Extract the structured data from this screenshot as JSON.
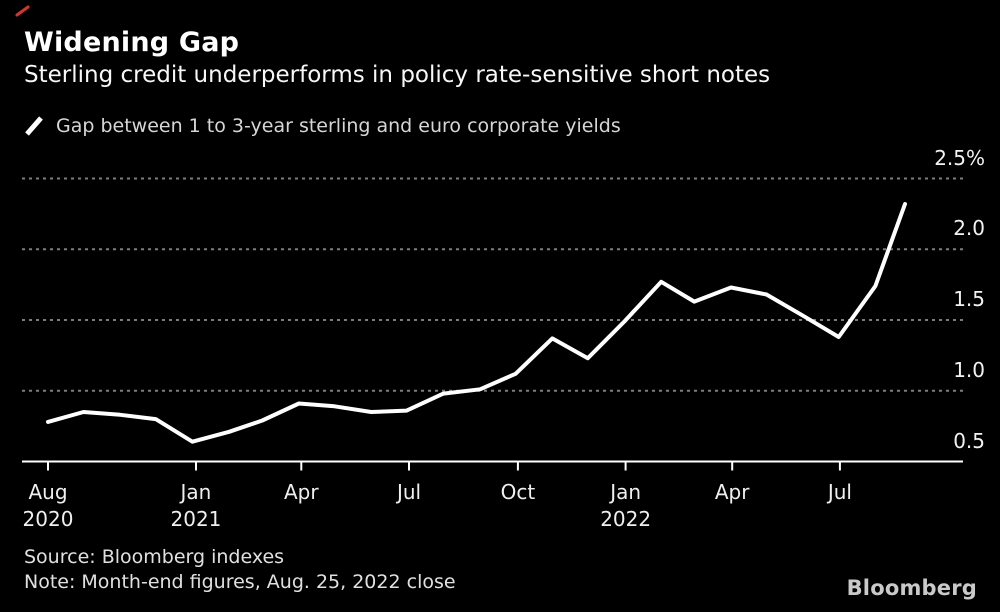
{
  "chart_data": {
    "type": "line",
    "title": "Widening Gap",
    "subtitle": "Sterling credit underperforms in policy rate-sensitive short notes",
    "legend": "Gap between 1 to 3-year sterling and euro corporate yields",
    "unit": "%",
    "x": [
      "Aug 2020",
      "Sep 2020",
      "Oct 2020",
      "Nov 2020",
      "Dec 2020",
      "Jan 2021",
      "Feb 2021",
      "Mar 2021",
      "Apr 2021",
      "May 2021",
      "Jun 2021",
      "Jul 2021",
      "Aug 2021",
      "Sep 2021",
      "Oct 2021",
      "Nov 2021",
      "Dec 2021",
      "Jan 2022",
      "Feb 2022",
      "Mar 2022",
      "Apr 2022",
      "May 2022",
      "Jun 2022",
      "Jul 2022",
      "Aug 25, 2022"
    ],
    "x_days": [
      0,
      30,
      61,
      91,
      122,
      153,
      181,
      212,
      242,
      273,
      303,
      334,
      365,
      395,
      426,
      456,
      487,
      518,
      546,
      577,
      607,
      638,
      668,
      699,
      724
    ],
    "values": [
      0.78,
      0.85,
      0.83,
      0.8,
      0.64,
      0.71,
      0.79,
      0.91,
      0.89,
      0.85,
      0.86,
      0.98,
      1.01,
      1.12,
      1.37,
      1.23,
      1.49,
      1.77,
      1.63,
      1.73,
      1.68,
      1.53,
      1.38,
      1.74,
      2.32
    ],
    "ylim": [
      0.5,
      2.6
    ],
    "yticks": [
      2.5,
      2.0,
      1.5,
      1.0,
      0.5
    ],
    "ytick_labels": [
      "2.5%",
      "2.0",
      "1.5",
      "1.0",
      "0.5"
    ],
    "baseline": 0.5,
    "x_ticks": [
      {
        "month": "Aug",
        "year": "2020",
        "day": 0
      },
      {
        "month": "Jan",
        "year": "2021",
        "day": 125
      },
      {
        "month": "Apr",
        "year": "",
        "day": 214
      },
      {
        "month": "Jul",
        "year": "",
        "day": 305
      },
      {
        "month": "Oct",
        "year": "",
        "day": 397
      },
      {
        "month": "Jan",
        "year": "2022",
        "day": 488
      },
      {
        "month": "Apr",
        "year": "",
        "day": 578
      },
      {
        "month": "Jul",
        "year": "",
        "day": 669
      }
    ],
    "grid": "horizontal-dashed",
    "legend_position": "top-left",
    "line_color": "#ffffff",
    "grid_color": "#7d7d7d",
    "background": "#000000",
    "xlabel": "",
    "ylabel": ""
  },
  "footer": {
    "source": "Source: Bloomberg indexes",
    "note": "Note: Month-end figures, Aug. 25, 2022 close",
    "logo": "Bloomberg"
  }
}
